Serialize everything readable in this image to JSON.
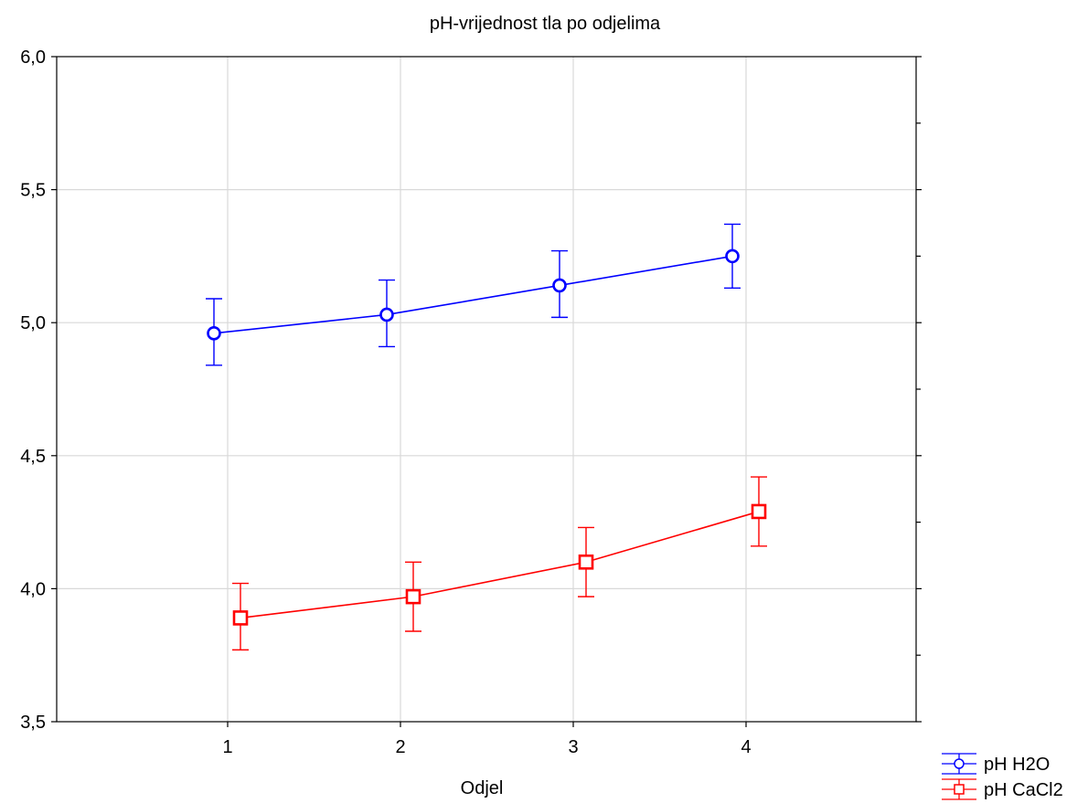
{
  "chart_data": {
    "type": "line",
    "title": "pH-vrijednost tla po odjelima",
    "xlabel": "Odjel",
    "ylabel": "",
    "categories": [
      "1",
      "2",
      "3",
      "4"
    ],
    "ylim": [
      3.5,
      6.0
    ],
    "yticks": [
      "3,5",
      "4,0",
      "4,5",
      "5,0",
      "5,5",
      "6,0"
    ],
    "ytick_values": [
      3.5,
      4.0,
      4.5,
      5.0,
      5.5,
      6.0
    ],
    "grid": true,
    "legend_position": "bottom-right",
    "series": [
      {
        "name": "pH H2O",
        "color": "#0000ff",
        "marker": "circle",
        "values": [
          4.96,
          5.03,
          5.14,
          5.25
        ],
        "err_low": [
          4.84,
          4.91,
          5.02,
          5.13
        ],
        "err_high": [
          5.09,
          5.16,
          5.27,
          5.37
        ]
      },
      {
        "name": "pH CaCl2",
        "color": "#ff0000",
        "marker": "square",
        "values": [
          3.89,
          3.97,
          4.1,
          4.29
        ],
        "err_low": [
          3.77,
          3.84,
          3.97,
          4.16
        ],
        "err_high": [
          4.02,
          4.1,
          4.23,
          4.42
        ]
      }
    ]
  }
}
